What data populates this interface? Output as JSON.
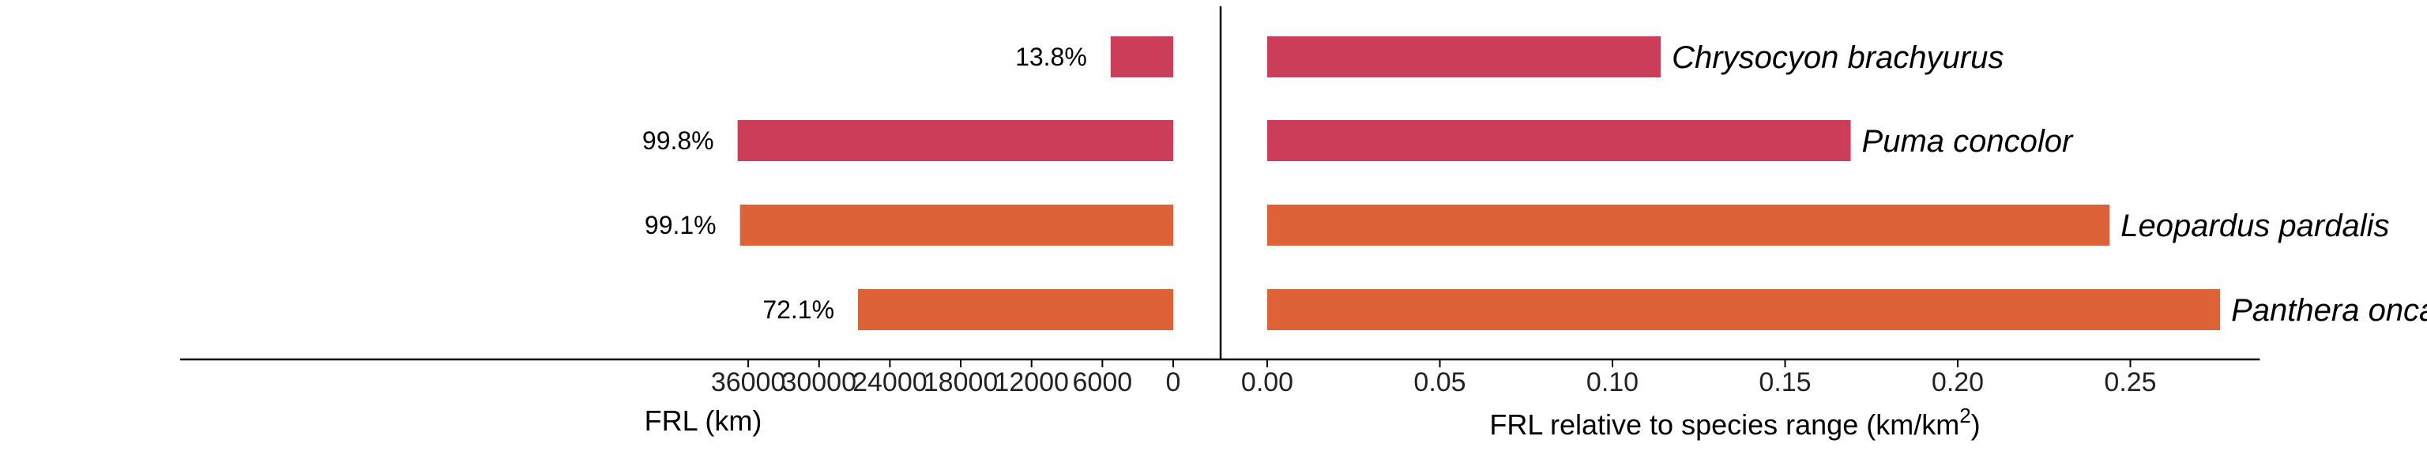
{
  "colors": {
    "series_red": "#cc3d5a",
    "series_orange": "#dd6238",
    "axis": "#000000"
  },
  "chart_data": [
    {
      "type": "bar",
      "orientation": "horizontal",
      "direction": "reversed",
      "categories": [
        "Chrysocyon brachyurus",
        "Puma concolor",
        "Leopardus pardalis",
        "Panthera onca"
      ],
      "values": [
        5300,
        36900,
        36700,
        26700
      ],
      "bar_labels": [
        "13.8%",
        "99.8%",
        "99.1%",
        "72.1%"
      ],
      "bar_colors": [
        "#cc3d5a",
        "#cc3d5a",
        "#dd6238",
        "#dd6238"
      ],
      "xlabel": "FRL (km)",
      "xlim": [
        0,
        40500
      ],
      "xticks": [
        0,
        6000,
        12000,
        18000,
        24000,
        30000,
        36000
      ],
      "xtick_labels": [
        "0",
        "6000",
        "12000",
        "18000",
        "24000",
        "30000",
        "36000"
      ]
    },
    {
      "type": "bar",
      "orientation": "horizontal",
      "categories": [
        "Chrysocyon brachyurus",
        "Puma concolor",
        "Leopardus pardalis",
        "Panthera onca"
      ],
      "values": [
        0.114,
        0.169,
        0.244,
        0.276
      ],
      "bar_colors": [
        "#cc3d5a",
        "#cc3d5a",
        "#dd6238",
        "#dd6238"
      ],
      "xlabel_main": "FRL relative to species range (km/km",
      "xlabel_sup": "2",
      "xlabel_end": ")",
      "xlim": [
        -0.0125,
        0.2875
      ],
      "xticks": [
        0,
        0.05,
        0.1,
        0.15,
        0.2,
        0.25
      ],
      "xtick_labels": [
        "0.00",
        "0.05",
        "0.10",
        "0.15",
        "0.20",
        "0.25"
      ]
    }
  ]
}
